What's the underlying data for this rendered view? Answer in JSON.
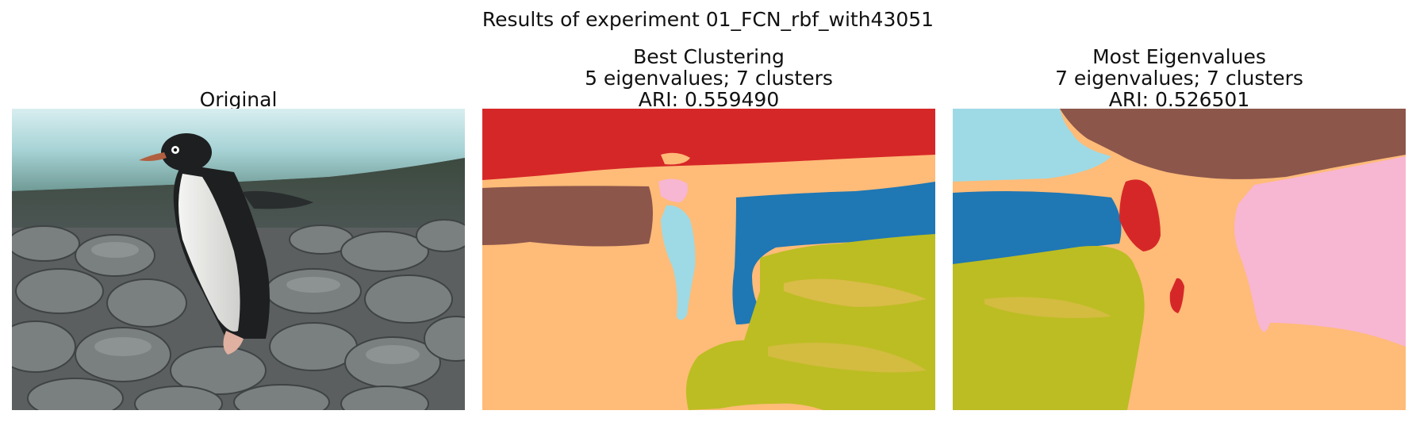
{
  "figure": {
    "suptitle": "Results of experiment 01_FCN_rbf_with43051"
  },
  "panels": [
    {
      "title_lines": [
        "Original"
      ],
      "image": "photo of a penguin standing on grey rocks"
    },
    {
      "title_lines": [
        "Best Clustering",
        "5 eigenvalues; 7 clusters",
        "ARI: 0.559490"
      ],
      "image": "cluster segmentation map"
    },
    {
      "title_lines": [
        "Most Eigenvalues",
        "7 eigenvalues; 7 clusters",
        "ARI: 0.526501"
      ],
      "image": "cluster segmentation map"
    }
  ],
  "colors": {
    "red": "#d62728",
    "brown": "#8c564b",
    "blue": "#1f77b4",
    "olive": "#bcbd22",
    "peach": "#ffbb78",
    "pink": "#f7b6d2",
    "cyan": "#9edae5"
  }
}
